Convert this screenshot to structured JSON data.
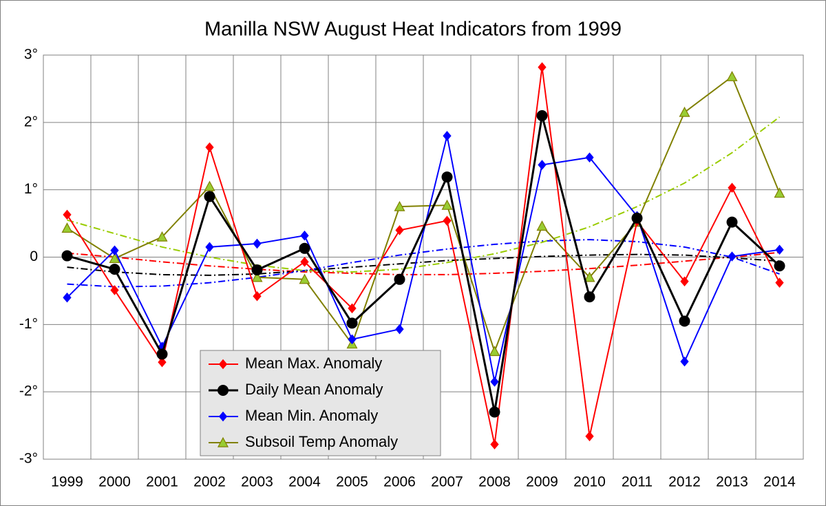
{
  "chart_data": {
    "type": "line",
    "title": "Manilla NSW August Heat Indicators from 1999",
    "categories": [
      "1999",
      "2000",
      "2001",
      "2002",
      "2003",
      "2004",
      "2005",
      "2006",
      "2007",
      "2008",
      "2009",
      "2010",
      "2011",
      "2012",
      "2013",
      "2014"
    ],
    "ylim": [
      -3,
      3
    ],
    "yticks": [
      {
        "value": -3,
        "label": "-3°"
      },
      {
        "value": -2,
        "label": "-2°"
      },
      {
        "value": -1,
        "label": "-1°"
      },
      {
        "value": 0,
        "label": "0"
      },
      {
        "value": 1,
        "label": "1°"
      },
      {
        "value": 2,
        "label": "2°"
      },
      {
        "value": 3,
        "label": "3°"
      }
    ],
    "grid": true,
    "legend": "lower center",
    "series": [
      {
        "name": "Mean Max. Anomaly",
        "color": "#ff0000",
        "marker": "diamond",
        "marker_fill": "#ff0000",
        "trend_color": "#ff0000",
        "values": [
          0.63,
          -0.49,
          -1.56,
          1.63,
          -0.58,
          -0.07,
          -0.76,
          0.4,
          0.54,
          -2.78,
          2.82,
          -2.66,
          0.53,
          -0.36,
          1.03,
          -0.38
        ],
        "trend": [
          0.06,
          0.0,
          -0.07,
          -0.13,
          -0.18,
          -0.22,
          -0.24,
          -0.26,
          -0.26,
          -0.24,
          -0.21,
          -0.17,
          -0.12,
          -0.06,
          0.0,
          0.07
        ]
      },
      {
        "name": "Daily Mean Anomaly",
        "color": "#000000",
        "marker": "circle",
        "marker_fill": "#000000",
        "trend_color": "#000000",
        "values": [
          0.02,
          -0.18,
          -1.44,
          0.9,
          -0.19,
          0.13,
          -0.98,
          -0.33,
          1.19,
          -2.3,
          2.1,
          -0.59,
          0.58,
          -0.95,
          0.52,
          -0.13
        ],
        "trend": [
          -0.15,
          -0.22,
          -0.26,
          -0.27,
          -0.25,
          -0.2,
          -0.15,
          -0.1,
          -0.05,
          -0.02,
          0.01,
          0.03,
          0.04,
          0.03,
          -0.01,
          -0.06
        ]
      },
      {
        "name": "Mean Min. Anomaly",
        "color": "#0000ff",
        "marker": "diamond",
        "marker_fill": "#0000ff",
        "trend_color": "#0000ff",
        "values": [
          -0.6,
          0.1,
          -1.33,
          0.15,
          0.2,
          0.32,
          -1.22,
          -1.07,
          1.8,
          -1.85,
          1.37,
          1.48,
          0.61,
          -1.55,
          0.01,
          0.11
        ],
        "trend": [
          -0.4,
          -0.44,
          -0.43,
          -0.38,
          -0.3,
          -0.2,
          -0.08,
          0.03,
          0.12,
          0.19,
          0.24,
          0.26,
          0.23,
          0.15,
          0.0,
          -0.25
        ]
      },
      {
        "name": "Subsoil Temp Anomaly",
        "color": "#808000",
        "marker": "triangle",
        "marker_fill": "#99cc33",
        "trend_color": "#99cc00",
        "values": [
          0.43,
          -0.02,
          0.3,
          1.05,
          -0.3,
          -0.33,
          -1.29,
          0.75,
          0.77,
          -1.4,
          0.46,
          -0.3,
          0.52,
          2.15,
          2.68,
          0.95
        ],
        "trend": [
          0.55,
          0.35,
          0.15,
          0.0,
          -0.12,
          -0.2,
          -0.22,
          -0.18,
          -0.08,
          0.05,
          0.22,
          0.45,
          0.75,
          1.1,
          1.55,
          2.08
        ]
      }
    ]
  }
}
